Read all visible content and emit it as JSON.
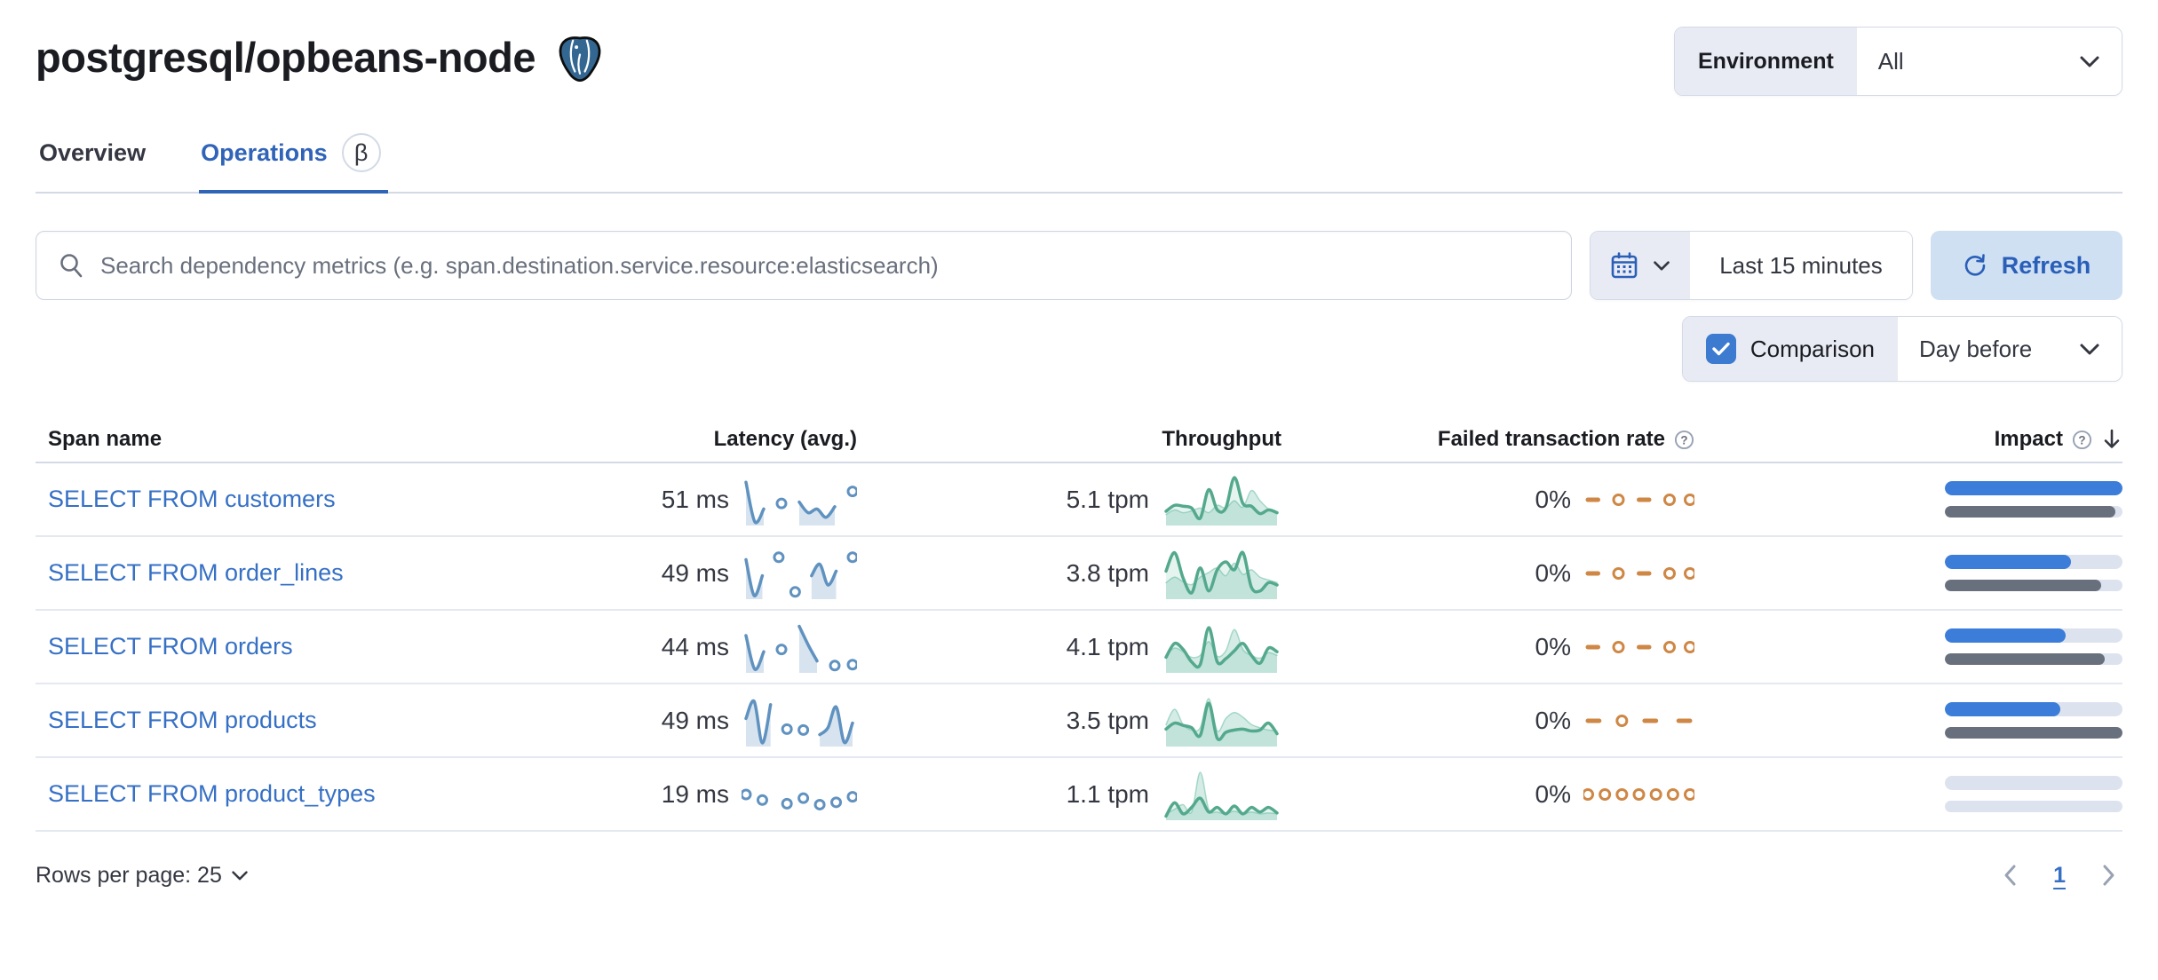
{
  "header": {
    "title": "postgresql/opbeans-node",
    "environment_label": "Environment",
    "environment_value": "All"
  },
  "tabs": [
    {
      "label": "Overview",
      "active": false
    },
    {
      "label": "Operations",
      "active": true,
      "beta": "β"
    }
  ],
  "toolbar": {
    "search_placeholder": "Search dependency metrics (e.g. span.destination.service.resource:elasticsearch)",
    "time_range": "Last 15 minutes",
    "refresh_label": "Refresh",
    "comparison_label": "Comparison",
    "comparison_checked": true,
    "comparison_value": "Day before"
  },
  "table": {
    "columns": {
      "span_name": "Span name",
      "latency": "Latency (avg.)",
      "throughput": "Throughput",
      "failed_rate": "Failed transaction rate",
      "impact": "Impact"
    },
    "rows": [
      {
        "span_name": "SELECT FROM customers",
        "latency": "51 ms",
        "throughput": "5.1 tpm",
        "failed_rate": "0%",
        "latency_spark": {
          "type": "latency",
          "points": [
            88,
            2,
            30,
            null,
            42,
            null,
            45,
            22,
            30,
            12,
            35,
            null,
            68
          ]
        },
        "throughput_spark": {
          "type": "throughput",
          "current": [
            25,
            38,
            36,
            32,
            10,
            72,
            28,
            32,
            98,
            42,
            36,
            20,
            28,
            22
          ],
          "previous": [
            18,
            28,
            22,
            26,
            32,
            22,
            38,
            32,
            48,
            34,
            70,
            48,
            30,
            20
          ]
        },
        "failed_spark": {
          "type": "failed",
          "points": [
            50,
            50,
            null,
            50,
            null,
            50,
            50,
            null,
            50,
            null,
            50
          ]
        },
        "impact": {
          "current": 100,
          "previous": 96
        }
      },
      {
        "span_name": "SELECT FROM order_lines",
        "latency": "49 ms",
        "throughput": "3.8 tpm",
        "failed_rate": "0%",
        "latency_spark": {
          "type": "latency",
          "points": [
            80,
            2,
            45,
            null,
            85,
            null,
            10,
            null,
            45,
            70,
            25,
            55,
            null,
            85
          ]
        },
        "throughput_spark": {
          "type": "throughput",
          "current": [
            55,
            95,
            40,
            8,
            62,
            12,
            58,
            75,
            58,
            95,
            20,
            12,
            30,
            25
          ],
          "previous": [
            30,
            42,
            32,
            26,
            42,
            52,
            62,
            45,
            72,
            48,
            58,
            42,
            36,
            30
          ]
        },
        "failed_spark": {
          "type": "failed",
          "points": [
            50,
            50,
            null,
            50,
            null,
            50,
            50,
            null,
            50,
            null,
            50
          ]
        },
        "impact": {
          "current": 71,
          "previous": 88
        }
      },
      {
        "span_name": "SELECT FROM orders",
        "latency": "44 ms",
        "throughput": "4.1 tpm",
        "failed_rate": "0%",
        "latency_spark": {
          "type": "latency",
          "points": [
            75,
            2,
            40,
            null,
            45,
            null,
            95,
            55,
            20,
            null,
            10,
            null,
            12
          ]
        },
        "throughput_spark": {
          "type": "throughput",
          "current": [
            28,
            58,
            45,
            18,
            12,
            92,
            18,
            25,
            42,
            58,
            32,
            15,
            48,
            40
          ],
          "previous": [
            32,
            48,
            40,
            28,
            32,
            62,
            30,
            42,
            88,
            45,
            32,
            26,
            38,
            32
          ]
        },
        "failed_spark": {
          "type": "failed",
          "points": [
            50,
            50,
            null,
            50,
            null,
            50,
            50,
            null,
            50,
            null,
            50
          ]
        },
        "impact": {
          "current": 68,
          "previous": 90
        }
      },
      {
        "span_name": "SELECT FROM products",
        "latency": "49 ms",
        "throughput": "3.5 tpm",
        "failed_rate": "0%",
        "latency_spark": {
          "type": "latency",
          "points": [
            55,
            92,
            2,
            85,
            null,
            32,
            null,
            30,
            null,
            20,
            35,
            80,
            3,
            45
          ]
        },
        "throughput_spark": {
          "type": "throughput",
          "current": [
            32,
            45,
            40,
            35,
            18,
            88,
            12,
            25,
            30,
            32,
            28,
            30,
            45,
            22
          ],
          "previous": [
            42,
            75,
            42,
            30,
            35,
            98,
            28,
            55,
            68,
            58,
            42,
            35,
            30,
            28
          ]
        },
        "failed_spark": {
          "type": "failed",
          "points": [
            50,
            50,
            null,
            50,
            null,
            50,
            50,
            null,
            50,
            50
          ]
        },
        "impact": {
          "current": 65,
          "previous": 100
        }
      },
      {
        "span_name": "SELECT FROM product_types",
        "latency": "19 ms",
        "throughput": "1.1 tpm",
        "failed_rate": "0%",
        "latency_spark": {
          "type": "latency",
          "points": [
            50,
            null,
            38,
            null,
            null,
            30,
            null,
            42,
            null,
            28,
            null,
            33,
            null,
            45
          ]
        },
        "throughput_spark": {
          "type": "throughput",
          "current": [
            3,
            32,
            8,
            22,
            42,
            12,
            22,
            8,
            25,
            8,
            22,
            12,
            22,
            10
          ],
          "previous": [
            8,
            18,
            28,
            12,
            98,
            18,
            12,
            8,
            14,
            8,
            12,
            8,
            10,
            8
          ]
        },
        "failed_spark": {
          "type": "failed",
          "points": [
            50,
            null,
            50,
            null,
            50,
            null,
            50,
            null,
            50,
            null,
            50,
            null,
            50
          ]
        },
        "impact": {
          "current": 0,
          "previous": 0
        }
      }
    ]
  },
  "footer": {
    "rows_per_page_label": "Rows per page: 25",
    "page": "1"
  },
  "colors": {
    "vis_blue": "#6092c0",
    "vis_blue_fill": "rgba(96,146,192,0.25)",
    "vis_green": "#54a98d",
    "vis_green_fill": "rgba(84,179,153,0.15)",
    "vis_green_prev_fill": "rgba(84,179,153,0.25)",
    "vis_green_prev_line": "rgba(84,179,153,0.45)",
    "vis_orange": "#ce8745",
    "impact_blue": "#3b7dd8",
    "impact_gray": "#69707d",
    "link_blue": "#3670c5"
  }
}
